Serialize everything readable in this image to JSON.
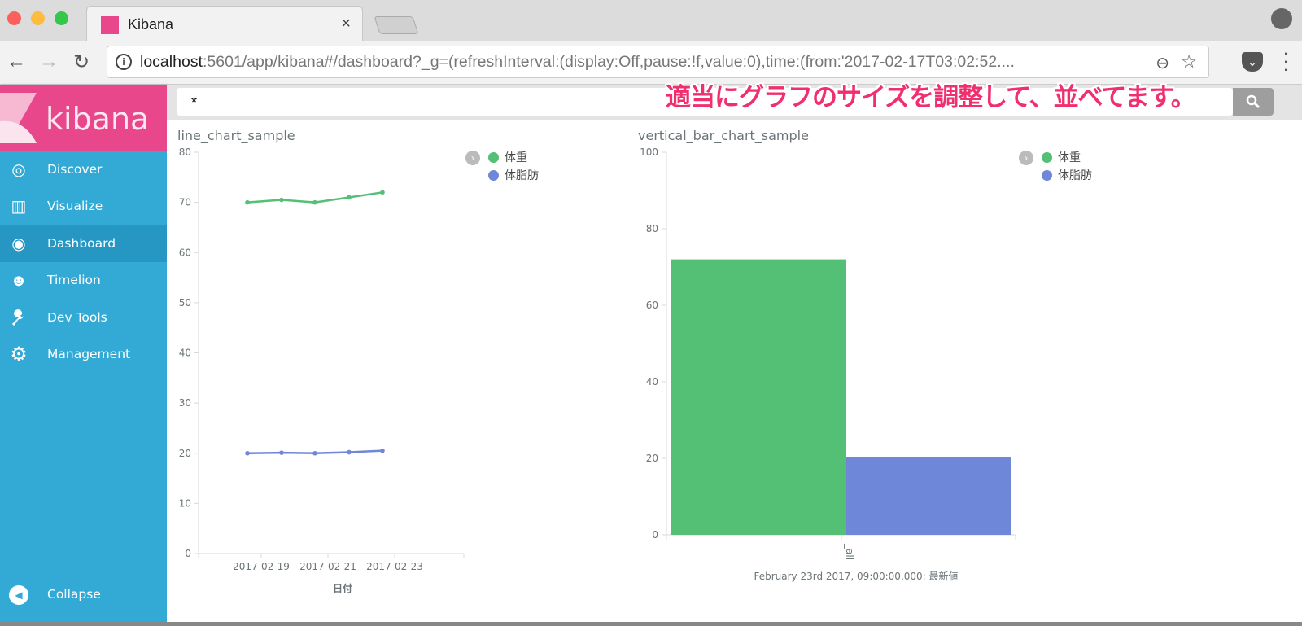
{
  "browser": {
    "tab_title": "Kibana",
    "tab_close": "×",
    "url_host": "localhost",
    "url_rest": ":5601/app/kibana#/dashboard?_g=(refreshInterval:(display:Off,pause:!f,value:0),time:(from:'2017-02-17T03:02:52....",
    "back": "←",
    "forward": "→",
    "reload": "↻",
    "zoom_icon": "⊖",
    "star_icon": "☆",
    "info_icon": "i"
  },
  "sidebar": {
    "logo": "kibana",
    "items": [
      {
        "label": "Discover",
        "icon": "compass-icon",
        "glyph": "◎"
      },
      {
        "label": "Visualize",
        "icon": "bar-chart-icon",
        "glyph": "▥"
      },
      {
        "label": "Dashboard",
        "icon": "dashboard-icon",
        "glyph": "◉",
        "active": true
      },
      {
        "label": "Timelion",
        "icon": "timelion-bear-icon",
        "glyph": "☻"
      },
      {
        "label": "Dev Tools",
        "icon": "wrench-icon",
        "glyph": "🔧"
      },
      {
        "label": "Management",
        "icon": "gear-icon",
        "glyph": "⚙"
      }
    ],
    "collapse": {
      "label": "Collapse",
      "glyph": "◀"
    }
  },
  "query": {
    "value": "*",
    "search_glyph": "⌕"
  },
  "annotation": "適当にグラフのサイズを調整して、並べてます。",
  "panels": {
    "line": {
      "title": "line_chart_sample"
    },
    "bar": {
      "title": "vertical_bar_chart_sample"
    }
  },
  "legend": {
    "toggle": "›",
    "items": [
      {
        "label": "体重",
        "color": "#54c075"
      },
      {
        "label": "体脂肪",
        "color": "#6f87d8"
      }
    ]
  },
  "chart_data": [
    {
      "type": "line",
      "title": "line_chart_sample",
      "xlabel": "日付",
      "ylabel": "",
      "ylim": [
        0,
        80
      ],
      "yticks": [
        0,
        10,
        20,
        30,
        40,
        50,
        60,
        70,
        80
      ],
      "xticks": [
        "2017-02-19",
        "2017-02-21",
        "2017-02-23"
      ],
      "x": [
        "2017-02-18",
        "2017-02-19",
        "2017-02-20",
        "2017-02-21",
        "2017-02-22"
      ],
      "series": [
        {
          "name": "体重",
          "color": "#54c075",
          "values": [
            70,
            70.5,
            70,
            71,
            72
          ]
        },
        {
          "name": "体脂肪",
          "color": "#6f87d8",
          "values": [
            20,
            20.1,
            20,
            20.2,
            20.5
          ]
        }
      ],
      "legend_position": "top-right",
      "grid": false
    },
    {
      "type": "bar",
      "title": "vertical_bar_chart_sample",
      "xlabel": "February 23rd 2017, 09:00:00.000: 最新値",
      "ylabel": "",
      "ylim": [
        0,
        100
      ],
      "yticks": [
        0,
        20,
        40,
        60,
        80,
        100
      ],
      "categories": [
        "_all"
      ],
      "series": [
        {
          "name": "体重",
          "color": "#54c075",
          "values": [
            72
          ]
        },
        {
          "name": "体脂肪",
          "color": "#6f87d8",
          "values": [
            20.4
          ]
        }
      ],
      "legend_position": "top-right",
      "grid": false
    }
  ]
}
